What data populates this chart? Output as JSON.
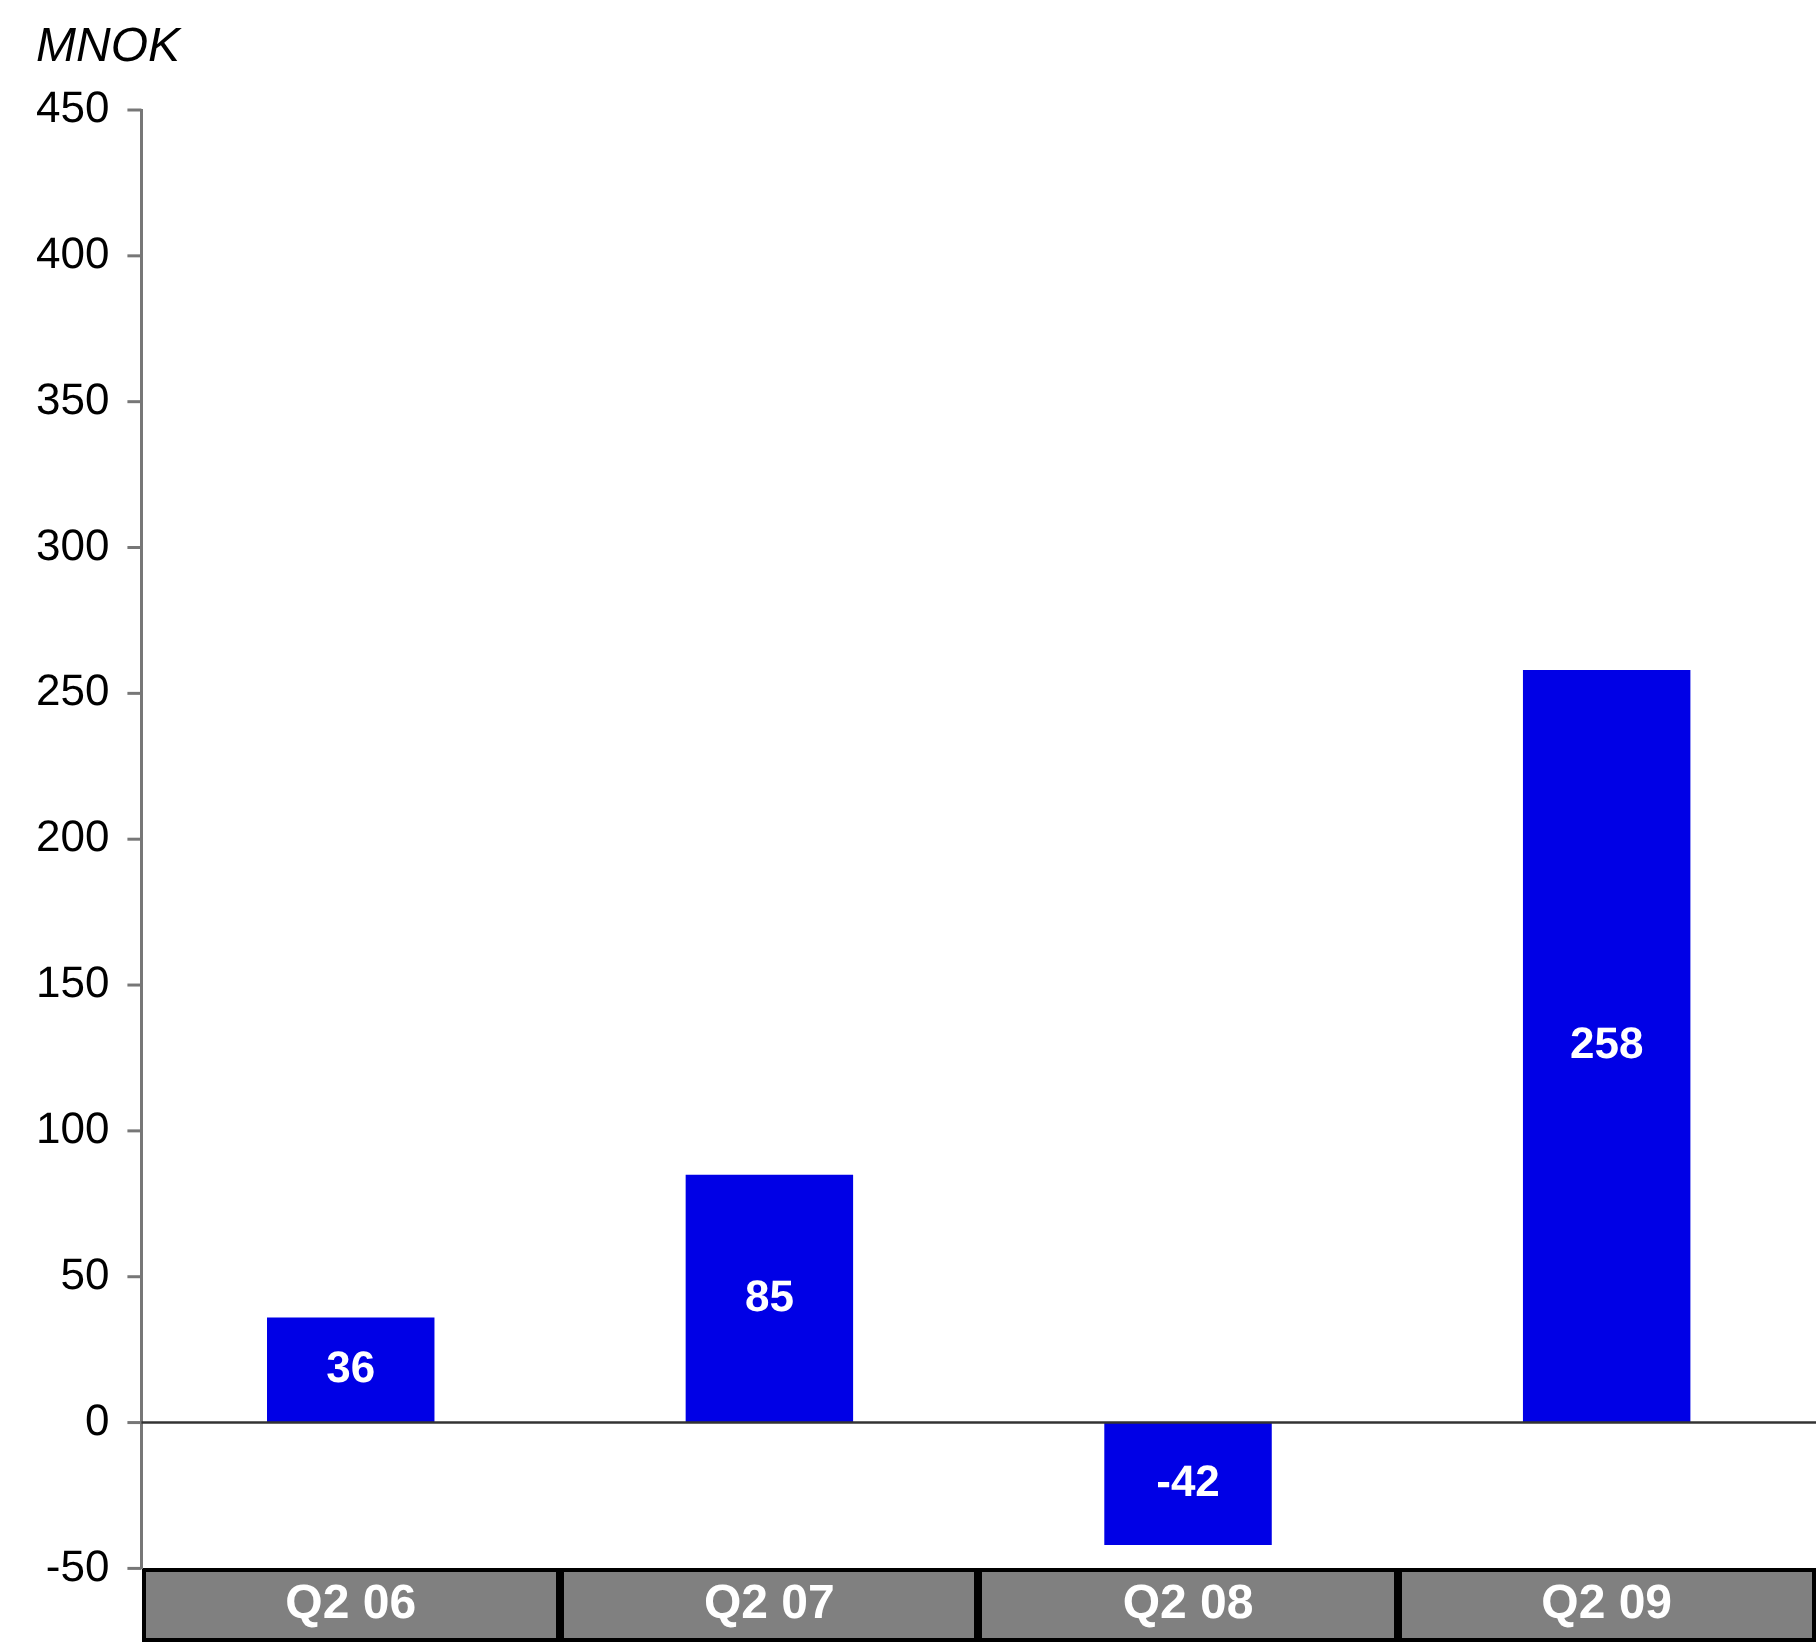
{
  "chart_data": {
    "type": "bar",
    "ylabel": "MNOK",
    "categories": [
      "Q2 06",
      "Q2 07",
      "Q2 08",
      "Q2 09"
    ],
    "values": [
      36,
      85,
      -42,
      258
    ],
    "color": "#0000e6",
    "ylim": [
      -50,
      450
    ],
    "yticks": [
      -50,
      0,
      50,
      100,
      150,
      200,
      250,
      300,
      350,
      400,
      450
    ],
    "ref_lines": [
      {
        "axis": "y",
        "value": 0,
        "color": "#333333"
      }
    ],
    "data_labels": true,
    "grid": false,
    "legend": false
  }
}
